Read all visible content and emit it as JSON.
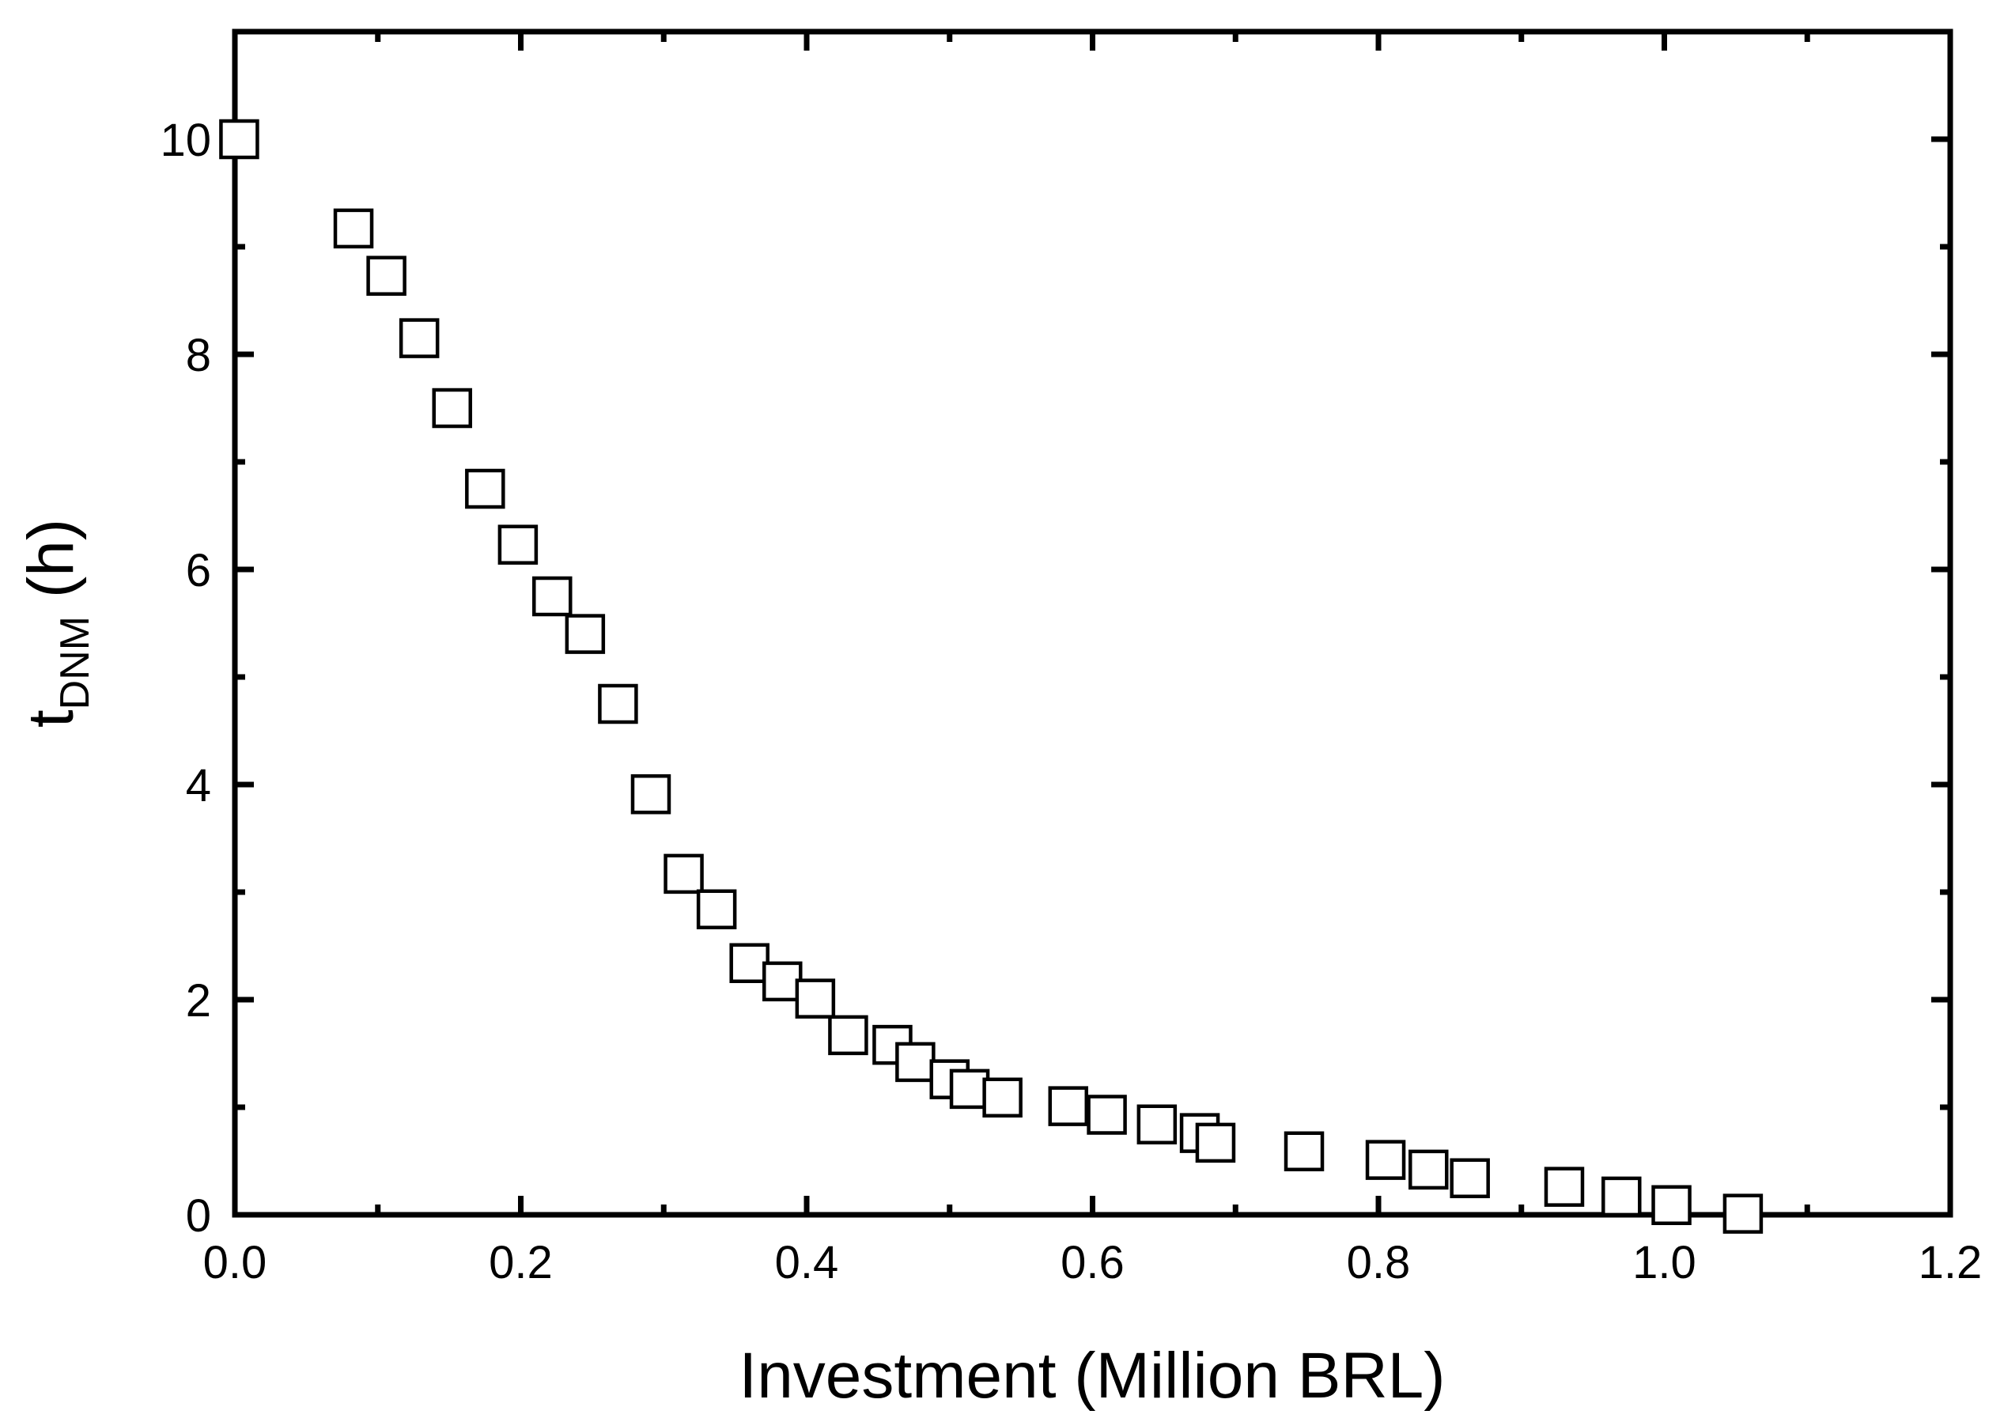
{
  "chart_data": {
    "type": "scatter",
    "title": "",
    "xlabel": "Investment (Million BRL)",
    "ylabel": {
      "main": "t",
      "subscript": "DNM",
      "unit": "(h)"
    },
    "xlim": [
      0.0,
      1.2
    ],
    "ylim": [
      0,
      11
    ],
    "xticks": [
      "0.0",
      "0.2",
      "0.4",
      "0.6",
      "0.8",
      "1.0",
      "1.2"
    ],
    "yticks": [
      "0",
      "2",
      "4",
      "6",
      "8",
      "10"
    ],
    "x_tick_values": [
      0.0,
      0.2,
      0.4,
      0.6,
      0.8,
      1.0,
      1.2
    ],
    "y_tick_values": [
      0,
      2,
      4,
      6,
      8,
      10
    ],
    "grid": false,
    "marker": "open-square",
    "marker_color": "#000000",
    "series": [
      {
        "x": [
          0.003,
          0.083,
          0.106,
          0.129,
          0.152,
          0.175,
          0.198,
          0.222,
          0.245,
          0.268,
          0.291,
          0.314,
          0.337,
          0.36,
          0.383,
          0.406,
          0.429,
          0.46,
          0.476,
          0.5,
          0.514,
          0.537,
          0.583,
          0.61,
          0.645,
          0.675,
          0.686,
          0.748,
          0.805,
          0.835,
          0.864,
          0.93,
          0.97,
          1.005,
          1.055
        ],
        "y": [
          10.0,
          9.17,
          8.73,
          8.15,
          7.5,
          6.75,
          6.23,
          5.75,
          5.4,
          4.75,
          3.91,
          3.17,
          2.84,
          2.34,
          2.17,
          2.01,
          1.67,
          1.58,
          1.42,
          1.26,
          1.17,
          1.09,
          1.01,
          0.93,
          0.84,
          0.76,
          0.67,
          0.59,
          0.51,
          0.42,
          0.34,
          0.26,
          0.17,
          0.09,
          0.01
        ]
      }
    ]
  }
}
